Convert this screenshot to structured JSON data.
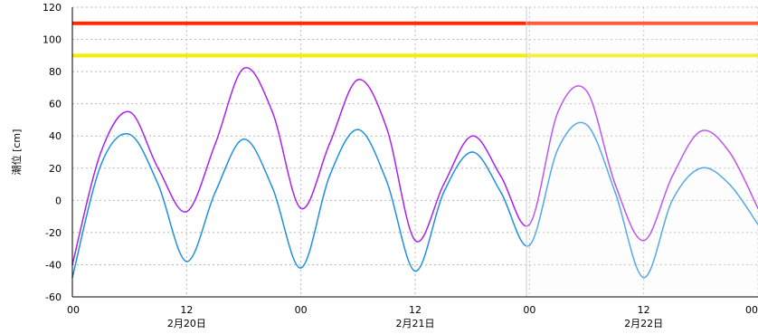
{
  "chart_data": {
    "type": "line",
    "ylabel": "潮位 [cm]",
    "ylim": [
      -60,
      120
    ],
    "y_ticks": [
      "120",
      "100",
      "80",
      "60",
      "40",
      "20",
      "0",
      "-20",
      "-40",
      "-60"
    ],
    "x_ticks": [
      "00",
      "12",
      "00",
      "12",
      "00",
      "12",
      "00"
    ],
    "date_labels": [
      "2月20日",
      "2月21日",
      "2月22日"
    ],
    "grid": true,
    "thresholds": [
      {
        "value": 110,
        "color": "#ff2a00"
      },
      {
        "value": 90,
        "color": "#f4ee00"
      }
    ],
    "series": [
      {
        "color": "#aa22ee",
        "x": [
          0,
          3,
          6,
          9,
          12,
          15,
          18,
          21,
          24,
          27,
          30,
          33,
          36,
          39,
          42,
          45,
          48,
          51,
          54,
          57,
          60,
          63,
          66,
          69,
          72
        ],
        "values": [
          -40,
          30,
          55,
          20,
          -7,
          35,
          82,
          55,
          -5,
          35,
          75,
          45,
          -25,
          10,
          40,
          15,
          -15,
          55,
          68,
          10,
          -25,
          15,
          43,
          30,
          -5
        ]
      },
      {
        "color": "#1e90e0",
        "x": [
          0,
          3,
          6,
          9,
          12,
          15,
          18,
          21,
          24,
          27,
          30,
          33,
          36,
          39,
          42,
          45,
          48,
          51,
          54,
          57,
          60,
          63,
          66,
          69,
          72
        ],
        "values": [
          -48,
          22,
          41,
          10,
          -38,
          5,
          38,
          8,
          -42,
          15,
          44,
          12,
          -44,
          5,
          30,
          5,
          -28,
          32,
          47,
          5,
          -48,
          0,
          20,
          10,
          -15
        ]
      }
    ]
  }
}
